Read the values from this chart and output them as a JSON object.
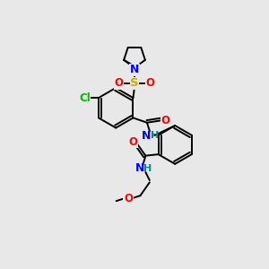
{
  "bg_color": "#e8e8e8",
  "bond_color": "#000000",
  "atom_colors": {
    "O": "#ff0000",
    "N": "#0000ff",
    "S": "#ccaa00",
    "Cl": "#00bb00",
    "H": "#008888"
  },
  "figsize": [
    3.0,
    3.0
  ],
  "dpi": 100
}
